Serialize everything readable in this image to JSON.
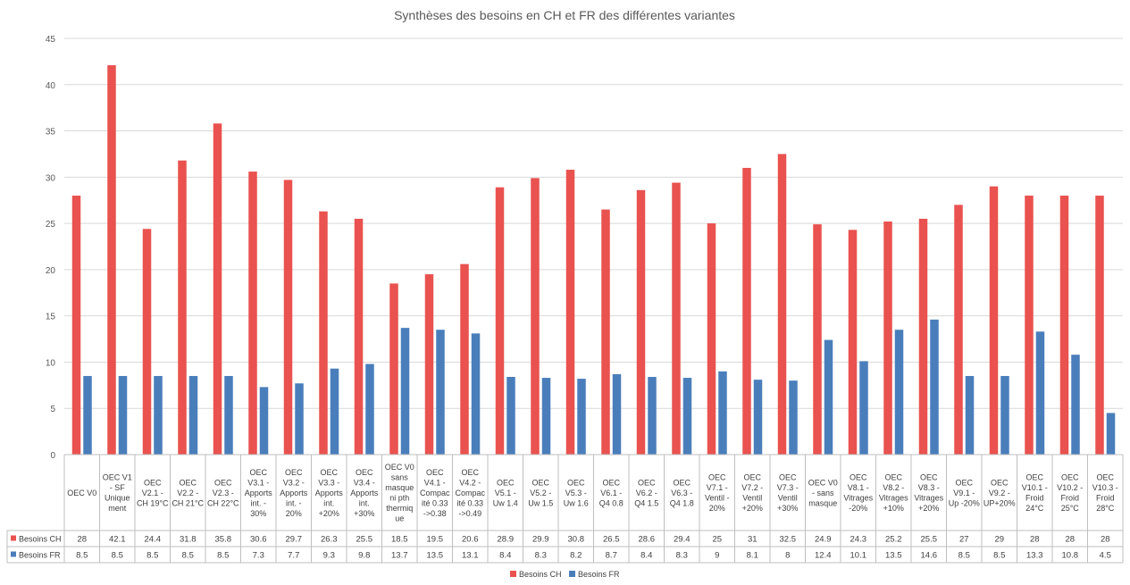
{
  "chart_data": {
    "type": "bar",
    "title": "Synthèses des besoins en CH et FR des différentes variantes",
    "xlabel": "",
    "ylabel": "",
    "ylim": [
      0,
      45
    ],
    "yticks": [
      "0",
      "5",
      "10",
      "15",
      "20",
      "25",
      "30",
      "35",
      "40",
      "45"
    ],
    "grid": true,
    "legend_position": "bottom",
    "data_table": true,
    "categories": [
      "OEC V0",
      "OEC V1 - SF Unique ment",
      "OEC V2.1 - CH 19°C",
      "OEC V2.2 - CH 21°C",
      "OEC V2.3 - CH 22°C",
      "OEC V3.1 - Apports int. - 30%",
      "OEC V3.2 - Apports int. - 20%",
      "OEC V3.3 - Apports int. +20%",
      "OEC V3.4 - Apports int. +30%",
      "OEC V0 sans masque ni pth thermiq ue",
      "OEC V4.1 - Compac ité 0.33 ->0.38",
      "OEC V4.2 - Compac ité 0.33 ->0.49",
      "OEC V5.1 - Uw 1.4",
      "OEC V5.2 - Uw 1.5",
      "OEC V5.3 - Uw 1.6",
      "OEC V6.1 - Q4 0.8",
      "OEC V6.2 - Q4 1.5",
      "OEC V6.3 - Q4 1.8",
      "OEC V7.1 - Ventil - 20%",
      "OEC V7.2 - Ventil +20%",
      "OEC V7.3 - Ventil +30%",
      "OEC V0 - sans masque",
      "OEC V8.1 - Vitrages -20%",
      "OEC V8.2 - Vitrages +10%",
      "OEC V8.3 - Vitrages +20%",
      "OEC V9.1 - Up -20%",
      "OEC V9.2 - UP+20%",
      "OEC V10.1 - Froid 24°C",
      "OEC V10.2 - Froid 25°C",
      "OEC V10.3 - Froid 28°C"
    ],
    "category_lines": [
      [
        "OEC V0"
      ],
      [
        "OEC V1",
        "- SF",
        "Unique",
        "ment"
      ],
      [
        "OEC",
        "V2.1 -",
        "CH 19°C"
      ],
      [
        "OEC",
        "V2.2 -",
        "CH 21°C"
      ],
      [
        "OEC",
        "V2.3 -",
        "CH 22°C"
      ],
      [
        "OEC",
        "V3.1 -",
        "Apports",
        "int. -",
        "30%"
      ],
      [
        "OEC",
        "V3.2 -",
        "Apports",
        "int. -",
        "20%"
      ],
      [
        "OEC",
        "V3.3 -",
        "Apports",
        "int.",
        "+20%"
      ],
      [
        "OEC",
        "V3.4 -",
        "Apports",
        "int.",
        "+30%"
      ],
      [
        "OEC V0",
        "sans",
        "masque",
        "ni pth",
        "thermiq",
        "ue"
      ],
      [
        "OEC",
        "V4.1 -",
        "Compac",
        "ité 0.33",
        "->0.38"
      ],
      [
        "OEC",
        "V4.2 -",
        "Compac",
        "ité 0.33",
        "->0.49"
      ],
      [
        "OEC",
        "V5.1 -",
        "Uw 1.4"
      ],
      [
        "OEC",
        "V5.2 -",
        "Uw 1.5"
      ],
      [
        "OEC",
        "V5.3 -",
        "Uw 1.6"
      ],
      [
        "OEC",
        "V6.1 -",
        "Q4 0.8"
      ],
      [
        "OEC",
        "V6.2 -",
        "Q4 1.5"
      ],
      [
        "OEC",
        "V6.3 -",
        "Q4 1.8"
      ],
      [
        "OEC",
        "V7.1 -",
        "Ventil -",
        "20%"
      ],
      [
        "OEC",
        "V7.2 -",
        "Ventil",
        "+20%"
      ],
      [
        "OEC",
        "V7.3 -",
        "Ventil",
        "+30%"
      ],
      [
        "OEC V0",
        "- sans",
        "masque"
      ],
      [
        "OEC",
        "V8.1 -",
        "Vitrages",
        "-20%"
      ],
      [
        "OEC",
        "V8.2 -",
        "Vitrages",
        "+10%"
      ],
      [
        "OEC",
        "V8.3 -",
        "Vitrages",
        "+20%"
      ],
      [
        "OEC",
        "V9.1 -",
        "Up -20%"
      ],
      [
        "OEC",
        "V9.2 -",
        "UP+20%"
      ],
      [
        "OEC",
        "V10.1 -",
        "Froid",
        "24°C"
      ],
      [
        "OEC",
        "V10.2 -",
        "Froid",
        "25°C"
      ],
      [
        "OEC",
        "V10.3 -",
        "Froid",
        "28°C"
      ]
    ],
    "series": [
      {
        "name": "Besoins CH",
        "color": "#e9524f",
        "values": [
          28,
          42.1,
          24.4,
          31.8,
          35.8,
          30.6,
          29.7,
          26.3,
          25.5,
          18.5,
          19.5,
          20.6,
          28.9,
          29.9,
          30.8,
          26.5,
          28.6,
          29.4,
          25,
          31,
          32.5,
          24.9,
          24.3,
          25.2,
          25.5,
          27,
          29,
          28,
          28,
          28
        ],
        "labels": [
          "28",
          "42.1",
          "24.4",
          "31.8",
          "35.8",
          "30.6",
          "29.7",
          "26.3",
          "25.5",
          "18.5",
          "19.5",
          "20.6",
          "28.9",
          "29.9",
          "30.8",
          "26.5",
          "28.6",
          "29.4",
          "25",
          "31",
          "32.5",
          "24.9",
          "24.3",
          "25.2",
          "25.5",
          "27",
          "29",
          "28",
          "28",
          "28"
        ]
      },
      {
        "name": "Besoins FR",
        "color": "#4a7ebb",
        "values": [
          8.5,
          8.5,
          8.5,
          8.5,
          8.5,
          7.3,
          7.7,
          9.3,
          9.8,
          13.7,
          13.5,
          13.1,
          8.4,
          8.3,
          8.2,
          8.7,
          8.4,
          8.3,
          9,
          8.1,
          8,
          12.4,
          10.1,
          13.5,
          14.6,
          8.5,
          8.5,
          13.3,
          10.8,
          4.5
        ],
        "labels": [
          "8.5",
          "8.5",
          "8.5",
          "8.5",
          "8.5",
          "7.3",
          "7.7",
          "9.3",
          "9.8",
          "13.7",
          "13.5",
          "13.1",
          "8.4",
          "8.3",
          "8.2",
          "8.7",
          "8.4",
          "8.3",
          "9",
          "8.1",
          "8",
          "12.4",
          "10.1",
          "13.5",
          "14.6",
          "8.5",
          "8.5",
          "13.3",
          "10.8",
          "4.5"
        ]
      }
    ]
  }
}
